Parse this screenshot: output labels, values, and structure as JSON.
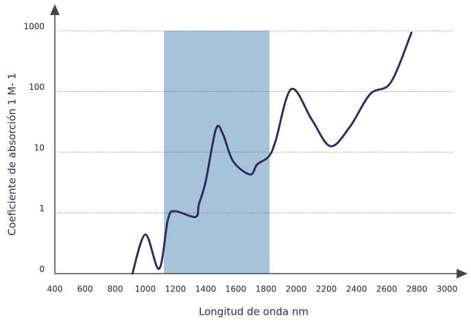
{
  "chart_data": {
    "type": "line",
    "x_label": "Longitud de onda nm",
    "y_label": "Coeficiente de absorción 1 M- 1",
    "log_y": true,
    "grid": true,
    "xlim": [
      400,
      3000
    ],
    "xticks": [
      400,
      600,
      800,
      1000,
      1200,
      1400,
      1600,
      1800,
      2000,
      2200,
      2400,
      2600,
      2800,
      3000
    ],
    "ylim": [
      0.1,
      1000
    ],
    "yticks": [
      {
        "value": 0.1,
        "label": "0"
      },
      1,
      10,
      100,
      1000
    ],
    "highlight": [
      1123,
      1823
    ],
    "highlight_color": "#a6c3da",
    "series": [
      {
        "color": "#2e2a5a",
        "x": [
          914,
          1000,
          1091,
          1150,
          1195,
          1332,
          1355,
          1400,
          1468,
          1514,
          1582,
          1695,
          1741,
          1818,
          1864,
          1968,
          2105,
          2227,
          2355,
          2491,
          2627,
          2764
        ],
        "values": [
          0.1,
          0.44,
          0.12,
          0.78,
          1.07,
          0.86,
          1.38,
          3.3,
          24,
          20,
          7.1,
          4.3,
          6.3,
          8.5,
          15.5,
          110,
          34,
          12.6,
          26,
          91,
          141,
          930
        ]
      }
    ]
  }
}
